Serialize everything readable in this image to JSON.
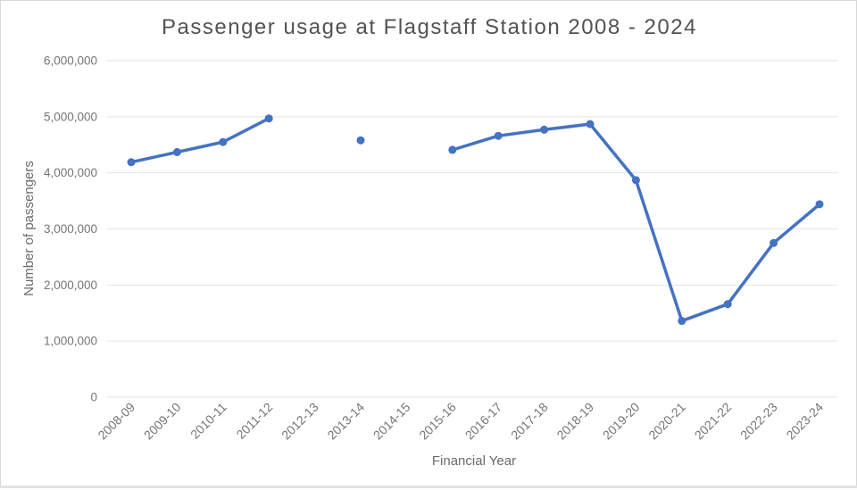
{
  "colors": {
    "accent": "#4472C4",
    "gridline": "#e2e2e2",
    "tick_text": "#757575",
    "axis_title_text": "#6b6b6b",
    "title_text": "#525252",
    "border": "#d9d9d9",
    "bottom_strip": "#e2e2e6",
    "background": "#ffffff"
  },
  "chart_data": {
    "type": "line",
    "title": "Passenger usage at Flagstaff Station 2008 - 2024",
    "xlabel": "Financial Year",
    "ylabel": "Number of passengers",
    "ylim": [
      0,
      6000000
    ],
    "grid": "horizontal",
    "legend": "none",
    "marker": "circle",
    "missing_years": [
      "2012-13",
      "2014-15"
    ],
    "categories": [
      "2008-09",
      "2009-10",
      "2010-11",
      "2011-12",
      "2012-13",
      "2013-14",
      "2014-15",
      "2015-16",
      "2016-17",
      "2017-18",
      "2018-19",
      "2019-20",
      "2020-21",
      "2021-22",
      "2022-23",
      "2023-24"
    ],
    "values": [
      4190000,
      4370000,
      4550000,
      4970000,
      null,
      4580000,
      null,
      4410000,
      4660000,
      4770000,
      4870000,
      3870000,
      1360000,
      1660000,
      2750000,
      3440000
    ],
    "yticks": [
      {
        "v": 0,
        "label": "0"
      },
      {
        "v": 1000000,
        "label": "1,000,000"
      },
      {
        "v": 2000000,
        "label": "2,000,000"
      },
      {
        "v": 3000000,
        "label": "3,000,000"
      },
      {
        "v": 4000000,
        "label": "4,000,000"
      },
      {
        "v": 5000000,
        "label": "5,000,000"
      },
      {
        "v": 6000000,
        "label": "6,000,000"
      }
    ]
  }
}
